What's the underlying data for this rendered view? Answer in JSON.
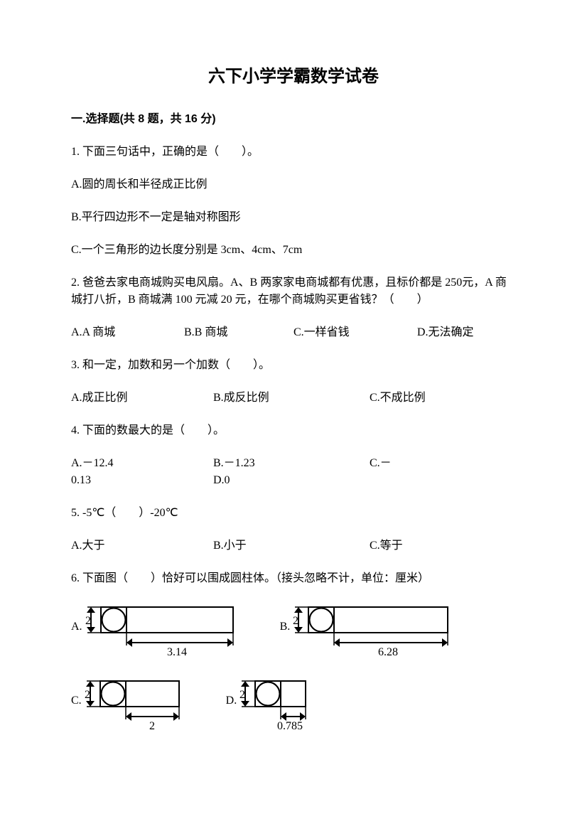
{
  "title": "六下小学学霸数学试卷",
  "section": "一.选择题(共 8 题，共 16 分)",
  "q1": {
    "stem": "1. 下面三句话中，正确的是（　　）。",
    "a": "A.圆的周长和半径成正比例",
    "b": "B.平行四边形不一定是轴对称图形",
    "c": "C.一个三角形的边长度分别是 3cm、4cm、7cm"
  },
  "q2": {
    "stem": "2. 爸爸去家电商城购买电风扇。A、B 两家家电商城都有优惠，且标价都是 250元，A 商城打八折，B 商城满 100 元减 20 元，在哪个商城购买更省钱？（　　）",
    "a": "A.A 商城",
    "b": "B.B 商城",
    "c": "C.一样省钱",
    "d": "D.无法确定"
  },
  "q3": {
    "stem": "3. 和一定，加数和另一个加数（　　）。",
    "a": "A.成正比例",
    "b": "B.成反比例",
    "c": "C.不成比例"
  },
  "q4": {
    "stem": "4. 下面的数最大的是（　　）。",
    "a": "A.－12.4",
    "b": "B.－1.23",
    "c": "C.－",
    "line2a": "0.13",
    "line2b": "D.0"
  },
  "q5": {
    "stem": "5. -5℃（　　）-20℃",
    "a": "A.大于",
    "b": "B.小于",
    "c": "C.等于"
  },
  "q6": {
    "stem": "6. 下面图（　　）恰好可以围成圆柱体。（接头忽略不计，单位：厘米）",
    "diagrams": {
      "A": {
        "label": "A.",
        "height": "2",
        "width": "3.14",
        "rect_w": 150,
        "circles_w": 36
      },
      "B": {
        "label": "B.",
        "height": "2",
        "width": "6.28",
        "rect_w": 160,
        "circles_w": 36
      },
      "C": {
        "label": "C.",
        "height": "2",
        "width": "2",
        "rect_w": 75,
        "circles_w": 36
      },
      "D": {
        "label": "D.",
        "height": "2",
        "width": "0.785",
        "rect_w": 35,
        "circles_w": 36
      }
    }
  },
  "colors": {
    "stroke": "#000000",
    "bg": "#ffffff",
    "text": "#000000"
  },
  "fonts": {
    "title_size": 24,
    "body_size": 16
  }
}
